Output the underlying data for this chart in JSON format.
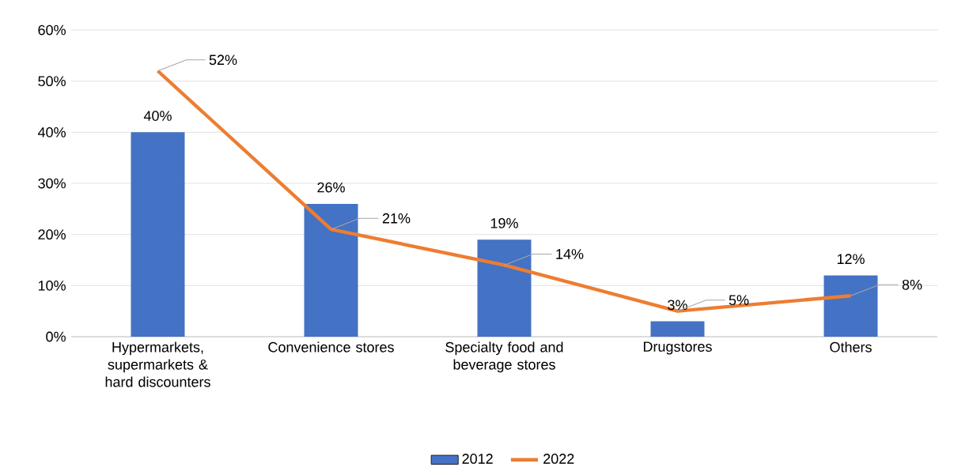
{
  "chart_data": {
    "type": "bar",
    "categories": [
      "Hypermarkets, supermarkets & hard discounters",
      "Convenience stores",
      "Specialty food and beverage stores",
      "Drugstores",
      "Others"
    ],
    "series": [
      {
        "name": "2012",
        "color": "#4472c4",
        "values": [
          40,
          26,
          19,
          3,
          12
        ],
        "value_labels": [
          "40%",
          "26%",
          "19%",
          "3%",
          "12%"
        ]
      },
      {
        "name": "2022",
        "type": "line",
        "color": "#ed7d31",
        "values": [
          52,
          21,
          14,
          5,
          8
        ],
        "value_labels": [
          "52%",
          "21%",
          "14%",
          "5%",
          "8%"
        ]
      }
    ],
    "ylim": [
      0,
      60
    ],
    "yticks": [
      {
        "value": 0,
        "label": "0%"
      },
      {
        "value": 10,
        "label": "10%"
      },
      {
        "value": 20,
        "label": "20%"
      },
      {
        "value": 30,
        "label": "30%"
      },
      {
        "value": 40,
        "label": "40%"
      },
      {
        "value": 50,
        "label": "50%"
      },
      {
        "value": 60,
        "label": "60%"
      }
    ],
    "grid": "y",
    "legend": "bottom",
    "marker": "none"
  }
}
